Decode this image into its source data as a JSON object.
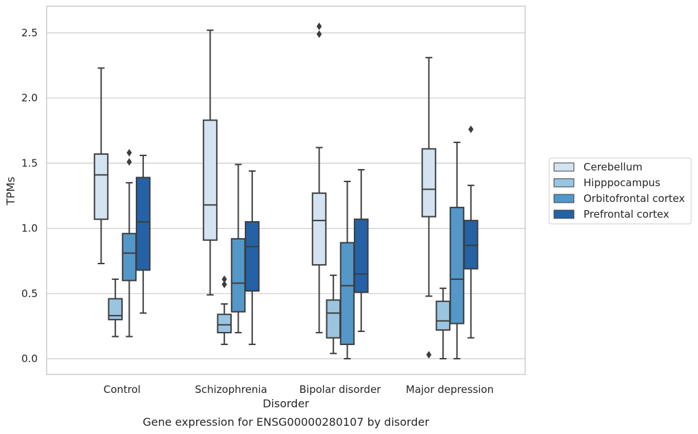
{
  "caption": "Gene expression for ENSG00000280107 by disorder",
  "chart_data": {
    "type": "box",
    "xlabel": "Disorder",
    "ylabel": "TPMs",
    "ylim": [
      -0.12,
      2.7
    ],
    "yticks": [
      0.0,
      0.5,
      1.0,
      1.5,
      2.0,
      2.5
    ],
    "ytick_labels": [
      "0.0",
      "0.5",
      "1.0",
      "1.5",
      "2.0",
      "2.5"
    ],
    "categories": [
      "Control",
      "Schizophrenia",
      "Bipolar disorder",
      "Major depression"
    ],
    "grid": "horizontal",
    "legend_position": "right",
    "series": [
      {
        "name": "Cerebellum",
        "color": "#d3e3f2",
        "boxes": [
          {
            "whisker_low": 0.73,
            "q1": 1.07,
            "median": 1.41,
            "q3": 1.57,
            "whisker_high": 2.23,
            "outliers": []
          },
          {
            "whisker_low": 0.49,
            "q1": 0.91,
            "median": 1.18,
            "q3": 1.83,
            "whisker_high": 2.52,
            "outliers": []
          },
          {
            "whisker_low": 0.2,
            "q1": 0.72,
            "median": 1.06,
            "q3": 1.27,
            "whisker_high": 1.62,
            "outliers": [
              2.49,
              2.55
            ]
          },
          {
            "whisker_low": 0.48,
            "q1": 1.09,
            "median": 1.3,
            "q3": 1.61,
            "whisker_high": 2.31,
            "outliers": [
              0.03
            ]
          }
        ]
      },
      {
        "name": "Hipppocampus",
        "color": "#9ac5e0",
        "boxes": [
          {
            "whisker_low": 0.17,
            "q1": 0.3,
            "median": 0.33,
            "q3": 0.46,
            "whisker_high": 0.61,
            "outliers": []
          },
          {
            "whisker_low": 0.11,
            "q1": 0.2,
            "median": 0.26,
            "q3": 0.34,
            "whisker_high": 0.42,
            "outliers": [
              0.57,
              0.61
            ]
          },
          {
            "whisker_low": 0.04,
            "q1": 0.16,
            "median": 0.35,
            "q3": 0.45,
            "whisker_high": 0.64,
            "outliers": []
          },
          {
            "whisker_low": 0.0,
            "q1": 0.22,
            "median": 0.29,
            "q3": 0.44,
            "whisker_high": 0.54,
            "outliers": []
          }
        ]
      },
      {
        "name": "Orbitofrontal cortex",
        "color": "#5497c9",
        "boxes": [
          {
            "whisker_low": 0.17,
            "q1": 0.6,
            "median": 0.81,
            "q3": 0.96,
            "whisker_high": 1.35,
            "outliers": [
              1.51,
              1.58
            ]
          },
          {
            "whisker_low": 0.2,
            "q1": 0.36,
            "median": 0.58,
            "q3": 0.92,
            "whisker_high": 1.49,
            "outliers": []
          },
          {
            "whisker_low": 0.0,
            "q1": 0.11,
            "median": 0.56,
            "q3": 0.89,
            "whisker_high": 1.36,
            "outliers": []
          },
          {
            "whisker_low": 0.0,
            "q1": 0.27,
            "median": 0.61,
            "q3": 1.16,
            "whisker_high": 1.66,
            "outliers": []
          }
        ]
      },
      {
        "name": "Prefrontal cortex",
        "color": "#2462a5",
        "boxes": [
          {
            "whisker_low": 0.35,
            "q1": 0.68,
            "median": 1.05,
            "q3": 1.39,
            "whisker_high": 1.56,
            "outliers": []
          },
          {
            "whisker_low": 0.11,
            "q1": 0.52,
            "median": 0.86,
            "q3": 1.05,
            "whisker_high": 1.44,
            "outliers": []
          },
          {
            "whisker_low": 0.21,
            "q1": 0.51,
            "median": 0.65,
            "q3": 1.07,
            "whisker_high": 1.45,
            "outliers": []
          },
          {
            "whisker_low": 0.16,
            "q1": 0.69,
            "median": 0.87,
            "q3": 1.06,
            "whisker_high": 1.33,
            "outliers": [
              1.76
            ]
          }
        ]
      }
    ]
  }
}
